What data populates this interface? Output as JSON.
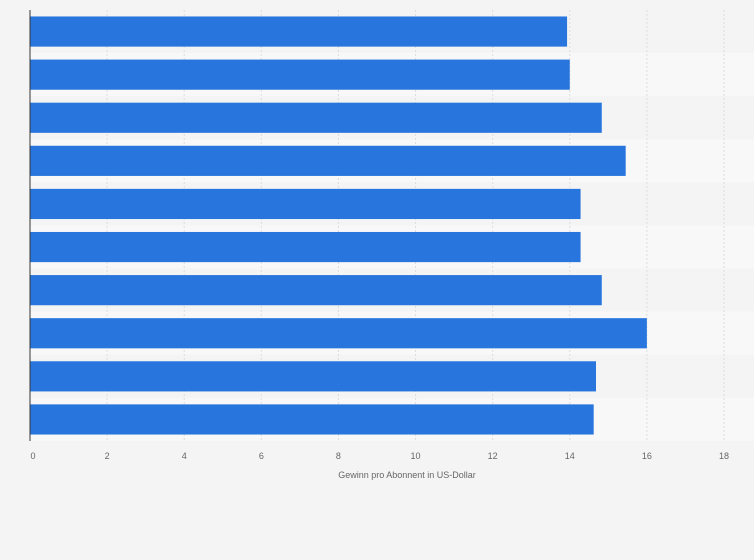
{
  "chart_data": {
    "type": "bar",
    "orientation": "horizontal",
    "title": "",
    "xlabel": "Gewinn pro Abonnent in US-Dollar",
    "ylabel": "",
    "categories": [
      "",
      "",
      "",
      "",
      "",
      "",
      "",
      "",
      "",
      ""
    ],
    "values": [
      13.93,
      14.0,
      14.83,
      15.45,
      14.28,
      14.28,
      14.83,
      16.0,
      14.68,
      14.62
    ],
    "xlim": [
      0,
      18
    ],
    "x_ticks": [
      "0",
      "2",
      "4",
      "6",
      "8",
      "10",
      "12",
      "14",
      "16",
      "18"
    ],
    "grid": true,
    "legend": "none",
    "bar_color": "#2876dd",
    "band_colors": [
      "#f4f4f4",
      "#f8f8f8"
    ],
    "grid_color": "#dddddd",
    "axis_color": "#333333"
  }
}
